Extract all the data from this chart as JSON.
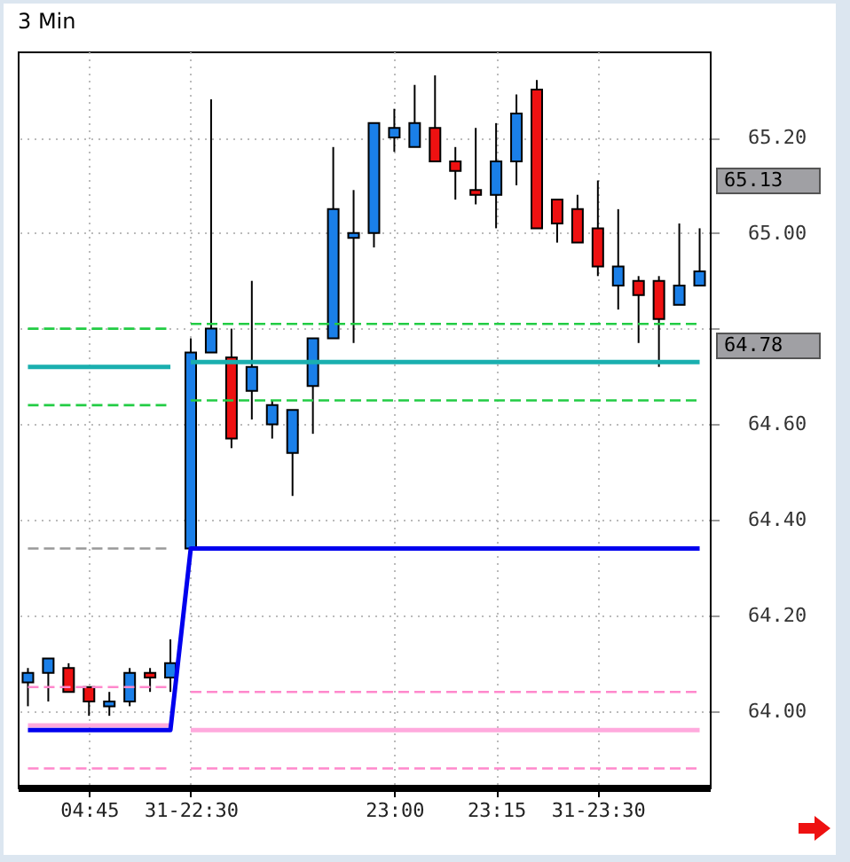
{
  "chart_data": {
    "type": "candlestick",
    "title": "3 Min",
    "categories": [
      null,
      null,
      null,
      "04:45",
      null,
      null,
      null,
      null,
      "31-22:30",
      null,
      null,
      null,
      null,
      null,
      null,
      null,
      null,
      null,
      "23:00",
      null,
      null,
      null,
      null,
      "23:15",
      null,
      null,
      null,
      null,
      "31-23:30",
      null,
      null,
      null,
      null,
      null
    ],
    "ohlc": [
      [
        64.06,
        64.09,
        64.01,
        64.08
      ],
      [
        64.08,
        64.11,
        64.02,
        64.11
      ],
      [
        64.09,
        64.1,
        64.04,
        64.04
      ],
      [
        64.05,
        64.05,
        63.99,
        64.02
      ],
      [
        64.01,
        64.04,
        63.99,
        64.02
      ],
      [
        64.02,
        64.09,
        64.01,
        64.08
      ],
      [
        64.08,
        64.09,
        64.04,
        64.07
      ],
      [
        64.07,
        64.15,
        64.04,
        64.1
      ],
      [
        64.34,
        64.78,
        64.34,
        64.75
      ],
      [
        64.75,
        65.28,
        64.75,
        64.8
      ],
      [
        64.74,
        64.8,
        64.55,
        64.57
      ],
      [
        64.67,
        64.9,
        64.61,
        64.72
      ],
      [
        64.6,
        64.65,
        64.57,
        64.64
      ],
      [
        64.54,
        64.63,
        64.45,
        64.63
      ],
      [
        64.68,
        64.78,
        64.58,
        64.78
      ],
      [
        64.78,
        65.18,
        64.78,
        65.05
      ],
      [
        64.99,
        65.09,
        64.77,
        65.0
      ],
      [
        65.0,
        65.23,
        64.97,
        65.23
      ],
      [
        65.2,
        65.26,
        65.17,
        65.22
      ],
      [
        65.18,
        65.31,
        65.18,
        65.23
      ],
      [
        65.22,
        65.33,
        65.15,
        65.15
      ],
      [
        65.15,
        65.18,
        65.07,
        65.13
      ],
      [
        65.09,
        65.22,
        65.06,
        65.08
      ],
      [
        65.08,
        65.23,
        65.01,
        65.15
      ],
      [
        65.15,
        65.29,
        65.1,
        65.25
      ],
      [
        65.3,
        65.32,
        65.01,
        65.01
      ],
      [
        65.07,
        65.07,
        64.98,
        65.02
      ],
      [
        65.05,
        65.08,
        64.98,
        64.98
      ],
      [
        65.01,
        65.11,
        64.91,
        64.93
      ],
      [
        64.89,
        65.05,
        64.84,
        64.93
      ],
      [
        64.9,
        64.91,
        64.77,
        64.87
      ],
      [
        64.9,
        64.91,
        64.72,
        64.82
      ],
      [
        64.85,
        65.02,
        64.85,
        64.89
      ],
      [
        64.89,
        65.01,
        64.89,
        64.92
      ]
    ],
    "colors": [
      "#1a7fe8",
      "#1a7fe8",
      "#ee1111",
      "#ee1111",
      "#1a7fe8",
      "#1a7fe8",
      "#ee1111",
      "#1a7fe8",
      "#1a7fe8",
      "#1a7fe8",
      "#ee1111",
      "#1a7fe8",
      "#1a7fe8",
      "#1a7fe8",
      "#1a7fe8",
      "#1a7fe8",
      "#1a7fe8",
      "#1a7fe8",
      "#1a7fe8",
      "#1a7fe8",
      "#ee1111",
      "#ee1111",
      "#ee1111",
      "#1a7fe8",
      "#1a7fe8",
      "#ee1111",
      "#ee1111",
      "#ee1111",
      "#ee1111",
      "#1a7fe8",
      "#ee1111",
      "#ee1111",
      "#1a7fe8",
      "#1a7fe8"
    ],
    "series": [
      {
        "type": "line",
        "color": "#22cc44",
        "line_style": "dashed",
        "values": [
          64.8,
          64.8,
          64.8,
          64.8,
          64.8,
          64.8,
          64.8,
          64.8,
          null,
          null,
          null,
          null,
          null,
          null,
          null,
          null,
          null,
          null,
          null,
          null,
          null,
          null,
          null,
          null,
          null,
          null,
          null,
          null,
          null,
          null,
          null,
          null,
          null,
          null
        ]
      },
      {
        "type": "line",
        "color": "#22cc44",
        "line_style": "dashed",
        "values": [
          null,
          null,
          null,
          null,
          null,
          null,
          null,
          null,
          64.81,
          64.81,
          64.81,
          64.81,
          64.81,
          64.81,
          64.81,
          64.81,
          64.81,
          64.81,
          64.81,
          64.81,
          64.81,
          64.81,
          64.81,
          64.81,
          64.81,
          64.81,
          64.81,
          64.81,
          64.81,
          64.81,
          64.81,
          64.81,
          64.81,
          64.81
        ]
      },
      {
        "type": "line",
        "color": "#22cc44",
        "line_style": "dashed",
        "values": [
          64.64,
          64.64,
          64.64,
          64.64,
          64.64,
          64.64,
          64.64,
          64.64,
          null,
          null,
          null,
          null,
          null,
          null,
          null,
          null,
          null,
          null,
          null,
          null,
          null,
          null,
          null,
          null,
          null,
          null,
          null,
          null,
          null,
          null,
          null,
          null,
          null,
          null
        ]
      },
      {
        "type": "line",
        "color": "#22cc44",
        "line_style": "dashed",
        "values": [
          null,
          null,
          null,
          null,
          null,
          null,
          null,
          null,
          64.65,
          64.65,
          64.65,
          64.65,
          64.65,
          64.65,
          64.65,
          64.65,
          64.65,
          64.65,
          64.65,
          64.65,
          64.65,
          64.65,
          64.65,
          64.65,
          64.65,
          64.65,
          64.65,
          64.65,
          64.65,
          64.65,
          64.65,
          64.65,
          64.65,
          64.65
        ]
      },
      {
        "type": "line",
        "color": "#1aafaf",
        "line_style": "solid",
        "values": [
          64.72,
          64.72,
          64.72,
          64.72,
          64.72,
          64.72,
          64.72,
          64.72,
          null,
          null,
          null,
          null,
          null,
          null,
          null,
          null,
          null,
          null,
          null,
          null,
          null,
          null,
          null,
          null,
          null,
          null,
          null,
          null,
          null,
          null,
          null,
          null,
          null,
          null
        ]
      },
      {
        "type": "line",
        "color": "#1aafaf",
        "line_style": "solid",
        "values": [
          null,
          null,
          null,
          null,
          null,
          null,
          null,
          null,
          64.73,
          64.73,
          64.73,
          64.73,
          64.73,
          64.73,
          64.73,
          64.73,
          64.73,
          64.73,
          64.73,
          64.73,
          64.73,
          64.73,
          64.73,
          64.73,
          64.73,
          64.73,
          64.73,
          64.73,
          64.73,
          64.73,
          64.73,
          64.73,
          64.73,
          64.73
        ]
      },
      {
        "type": "line",
        "color": "#999999",
        "line_style": "dashed",
        "values": [
          64.34,
          64.34,
          64.34,
          64.34,
          64.34,
          64.34,
          64.34,
          64.34,
          null,
          null,
          null,
          null,
          null,
          null,
          null,
          null,
          null,
          null,
          null,
          null,
          null,
          null,
          null,
          null,
          null,
          null,
          null,
          null,
          null,
          null,
          null,
          null,
          null,
          null
        ]
      },
      {
        "type": "line",
        "color": "#ff88cc",
        "line_style": "dashed",
        "values": [
          64.05,
          64.05,
          64.05,
          64.05,
          64.05,
          64.05,
          64.05,
          64.05,
          null,
          null,
          null,
          null,
          null,
          null,
          null,
          null,
          null,
          null,
          null,
          null,
          null,
          null,
          null,
          null,
          null,
          null,
          null,
          null,
          null,
          null,
          null,
          null,
          null,
          null
        ]
      },
      {
        "type": "line",
        "color": "#ff88cc",
        "line_style": "dashed",
        "values": [
          null,
          null,
          null,
          null,
          null,
          null,
          null,
          null,
          64.04,
          64.04,
          64.04,
          64.04,
          64.04,
          64.04,
          64.04,
          64.04,
          64.04,
          64.04,
          64.04,
          64.04,
          64.04,
          64.04,
          64.04,
          64.04,
          64.04,
          64.04,
          64.04,
          64.04,
          64.04,
          64.04,
          64.04,
          64.04,
          64.04,
          64.04
        ]
      },
      {
        "type": "line",
        "color": "#ff88cc",
        "line_style": "dashed",
        "values": [
          63.88,
          63.88,
          63.88,
          63.88,
          63.88,
          63.88,
          63.88,
          63.88,
          null,
          null,
          null,
          null,
          null,
          null,
          null,
          null,
          null,
          null,
          null,
          null,
          null,
          null,
          null,
          null,
          null,
          null,
          null,
          null,
          null,
          null,
          null,
          null,
          null,
          null
        ]
      },
      {
        "type": "line",
        "color": "#ff88cc",
        "line_style": "dashed",
        "values": [
          null,
          null,
          null,
          null,
          null,
          null,
          null,
          null,
          63.88,
          63.88,
          63.88,
          63.88,
          63.88,
          63.88,
          63.88,
          63.88,
          63.88,
          63.88,
          63.88,
          63.88,
          63.88,
          63.88,
          63.88,
          63.88,
          63.88,
          63.88,
          63.88,
          63.88,
          63.88,
          63.88,
          63.88,
          63.88,
          63.88,
          63.88
        ]
      },
      {
        "type": "line",
        "color": "#ffaadd",
        "line_style": "solid",
        "values": [
          63.97,
          63.97,
          63.97,
          63.97,
          63.97,
          63.97,
          63.97,
          63.97,
          null,
          null,
          null,
          null,
          null,
          null,
          null,
          null,
          null,
          null,
          null,
          null,
          null,
          null,
          null,
          null,
          null,
          null,
          null,
          null,
          null,
          null,
          null,
          null,
          null,
          null
        ]
      },
      {
        "type": "line",
        "color": "#ffaadd",
        "line_style": "solid",
        "values": [
          null,
          null,
          null,
          null,
          null,
          null,
          null,
          null,
          63.96,
          63.96,
          63.96,
          63.96,
          63.96,
          63.96,
          63.96,
          63.96,
          63.96,
          63.96,
          63.96,
          63.96,
          63.96,
          63.96,
          63.96,
          63.96,
          63.96,
          63.96,
          63.96,
          63.96,
          63.96,
          63.96,
          63.96,
          63.96,
          63.96,
          63.96
        ]
      },
      {
        "type": "line",
        "color": "#0000ee",
        "line_style": "solid",
        "values": [
          63.96,
          63.96,
          63.96,
          63.96,
          63.96,
          63.96,
          63.96,
          63.96,
          64.34,
          64.34,
          64.34,
          64.34,
          64.34,
          64.34,
          64.34,
          64.34,
          64.34,
          64.34,
          64.34,
          64.34,
          64.34,
          64.34,
          64.34,
          64.34,
          64.34,
          64.34,
          64.34,
          64.34,
          64.34,
          64.34,
          64.34,
          64.34,
          64.34,
          64.34
        ]
      }
    ],
    "annotations": [
      "65.13",
      "64.78"
    ],
    "ylim": [
      63.84,
      65.38
    ],
    "yticks": [
      {
        "value": 64,
        "label": "64.00"
      },
      {
        "value": 64.2,
        "label": "64.20"
      },
      {
        "value": 64.4,
        "label": "64.40"
      },
      {
        "value": 64.6,
        "label": "64.60"
      },
      {
        "value": 64.8,
        "label": null
      },
      {
        "value": 65,
        "label": "65.00"
      },
      {
        "value": 65.2,
        "label": "65.20"
      }
    ],
    "grid": true
  }
}
